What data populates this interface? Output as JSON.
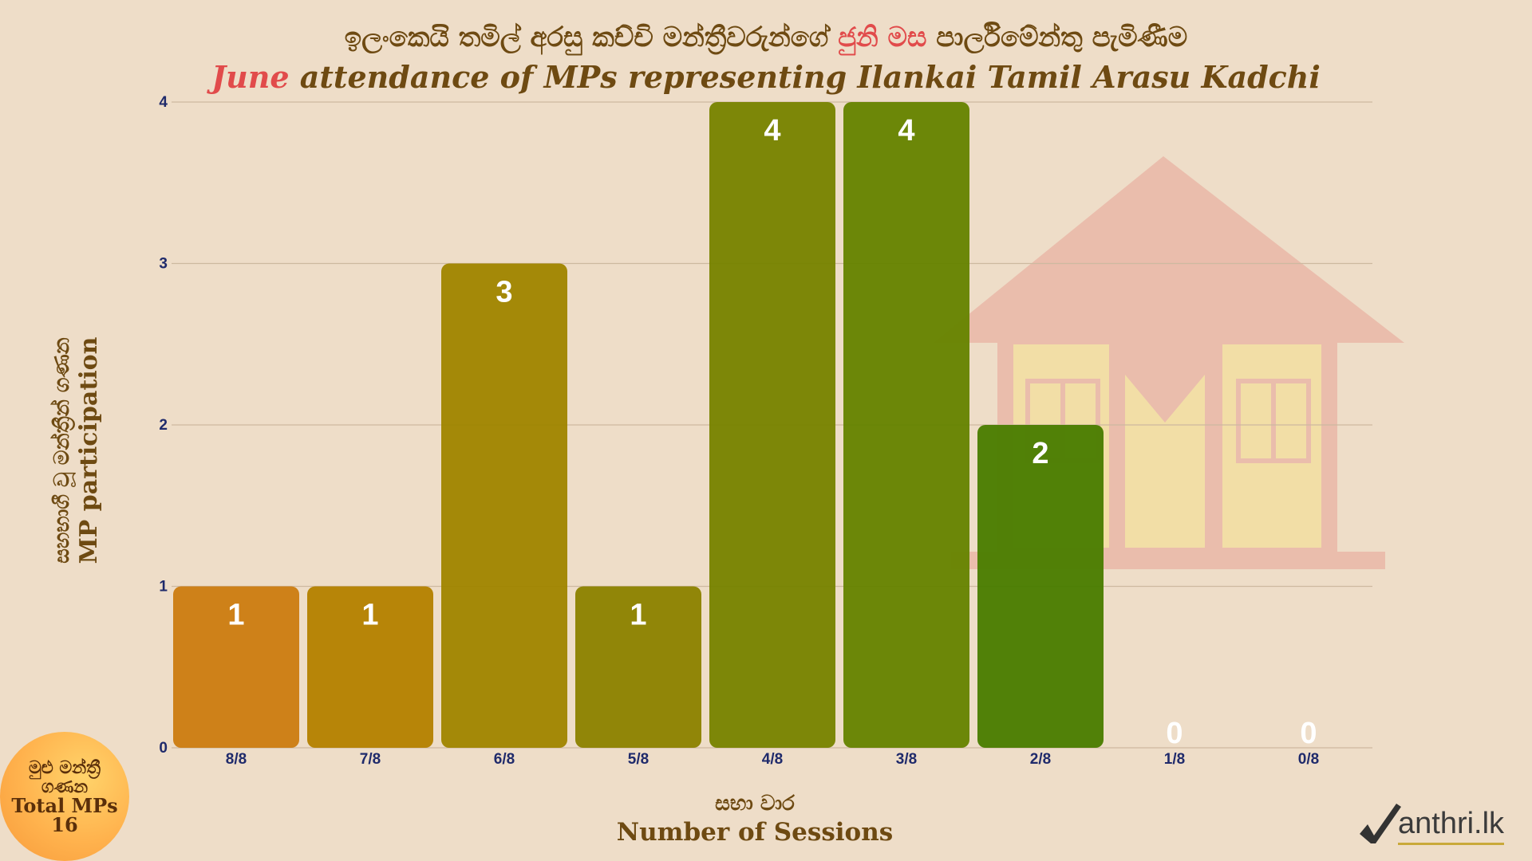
{
  "title": {
    "si_part1": "ඉලංකෙයි තමිල් අරසු කච්චි මන්ත්‍රීවරුන්ගේ ",
    "si_highlight": "ජුනි මස",
    "si_part2": " පාර්ලිමේන්තු පැමිණීම",
    "en_highlight": "June",
    "en_rest": " attendance of MPs representing Ilankai Tamil Arasu Kadchi"
  },
  "axes": {
    "ylabel_si": "සහභාගී වූ මන්ත්‍රීන් ගණන",
    "ylabel_en": "MP participation",
    "xlabel_si": "සභා වාර",
    "xlabel_en": "Number of Sessions"
  },
  "total": {
    "label_si_1": "මුළු මන්ත්‍රී",
    "label_si_2": "ගණන",
    "label_en": "Total MPs",
    "value": "16"
  },
  "logo": {
    "text": "anthri.lk"
  },
  "colors": {
    "background": "#eeddc8",
    "title": "#6e4a12",
    "highlight": "#e14b4b",
    "tick": "#1f2a6b",
    "bar_labels": "#ffffff",
    "house_watermark": "#e8a396"
  },
  "chart_data": {
    "type": "bar",
    "categories": [
      "8/8",
      "7/8",
      "6/8",
      "5/8",
      "4/8",
      "3/8",
      "2/8",
      "1/8",
      "0/8"
    ],
    "values": [
      1,
      1,
      3,
      1,
      4,
      4,
      2,
      0,
      0
    ],
    "bar_colors": [
      "#cc7d12",
      "#b48100",
      "#a08500",
      "#8c8200",
      "#788300",
      "#668300",
      "#4a7d00",
      "#3f7a00",
      "#357500"
    ],
    "y_ticks": [
      0,
      1,
      2,
      3,
      4
    ],
    "ylim": [
      0,
      4
    ],
    "grid": true,
    "data_labels": true
  }
}
